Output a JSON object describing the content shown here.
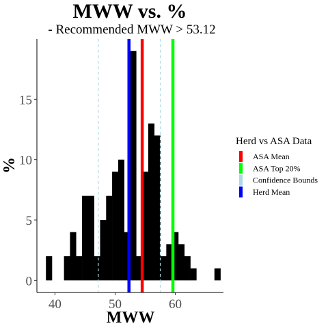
{
  "chart_data": {
    "type": "histogram",
    "title": "MWW  vs.  %",
    "subtitle": "- Recommended  MWW > 53.12",
    "xlabel": "MWW",
    "ylabel": "%",
    "xlim": [
      37,
      68
    ],
    "ylim": [
      -1,
      20
    ],
    "xticks": [
      40,
      50,
      60
    ],
    "yticks": [
      0,
      5,
      10,
      15
    ],
    "grid": false,
    "bin_width": 1,
    "bins": [
      {
        "x": 39,
        "value": 2
      },
      {
        "x": 42,
        "value": 2
      },
      {
        "x": 43,
        "value": 4
      },
      {
        "x": 44,
        "value": 2
      },
      {
        "x": 45,
        "value": 7
      },
      {
        "x": 46,
        "value": 7
      },
      {
        "x": 47,
        "value": 2
      },
      {
        "x": 48,
        "value": 5
      },
      {
        "x": 49,
        "value": 7
      },
      {
        "x": 50,
        "value": 9
      },
      {
        "x": 51,
        "value": 10
      },
      {
        "x": 52,
        "value": 4
      },
      {
        "x": 53,
        "value": 19
      },
      {
        "x": 54,
        "value": 2
      },
      {
        "x": 55,
        "value": 9
      },
      {
        "x": 56,
        "value": 13
      },
      {
        "x": 57,
        "value": 12
      },
      {
        "x": 58,
        "value": 2
      },
      {
        "x": 59,
        "value": 3
      },
      {
        "x": 60,
        "value": 4
      },
      {
        "x": 61,
        "value": 3
      },
      {
        "x": 62,
        "value": 2
      },
      {
        "x": 63,
        "value": 1
      },
      {
        "x": 67,
        "value": 1
      }
    ],
    "vlines": [
      {
        "name": "Confidence Bounds",
        "x": 47.2,
        "color": "#add8e6",
        "dashed": true
      },
      {
        "name": "Confidence Bounds",
        "x": 57.5,
        "color": "#add8e6",
        "dashed": true
      },
      {
        "name": "Herd Mean",
        "x": 52.3,
        "color": "#0000ff",
        "dashed": false
      },
      {
        "name": "ASA Mean",
        "x": 54.5,
        "color": "#ff0000",
        "dashed": false
      },
      {
        "name": "ASA Top 20%",
        "x": 59.6,
        "color": "#00ff00",
        "dashed": false
      }
    ],
    "legend": {
      "title": "Herd vs ASA Data",
      "position": "right",
      "items": [
        {
          "label": "ASA Mean",
          "color": "#ff0000"
        },
        {
          "label": "ASA Top 20%",
          "color": "#00ff00"
        },
        {
          "label": "Confidence Bounds",
          "color": "#add8e6"
        },
        {
          "label": "Herd Mean",
          "color": "#0000ff"
        }
      ]
    }
  }
}
